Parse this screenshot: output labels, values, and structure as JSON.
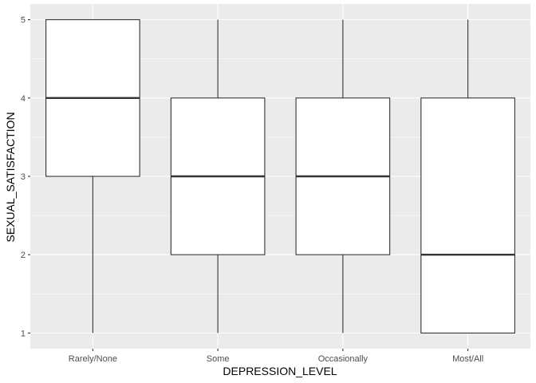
{
  "chart_data": {
    "type": "boxplot",
    "title": "",
    "xlabel": "DEPRESSION_LEVEL",
    "ylabel": "SEXUAL_SATISFACTION",
    "categories": [
      "Rarely/None",
      "Some",
      "Occasionally",
      "Most/All"
    ],
    "boxes": [
      {
        "category": "Rarely/None",
        "min": 1,
        "q1": 3,
        "median": 4,
        "q3": 5,
        "max": 5
      },
      {
        "category": "Some",
        "min": 1,
        "q1": 2,
        "median": 3,
        "q3": 4,
        "max": 5
      },
      {
        "category": "Occasionally",
        "min": 1,
        "q1": 2,
        "median": 3,
        "q3": 4,
        "max": 5
      },
      {
        "category": "Most/All",
        "min": 1,
        "q1": 1,
        "median": 2,
        "q3": 4,
        "max": 5
      }
    ],
    "y_ticks": [
      1,
      2,
      3,
      4,
      5
    ],
    "ylim": [
      0.8,
      5.2
    ],
    "grid": true,
    "colors": {
      "panel_background": "#EBEBEB",
      "grid_major": "#FFFFFF",
      "box_fill": "#FFFFFF",
      "box_stroke": "#333333"
    }
  }
}
